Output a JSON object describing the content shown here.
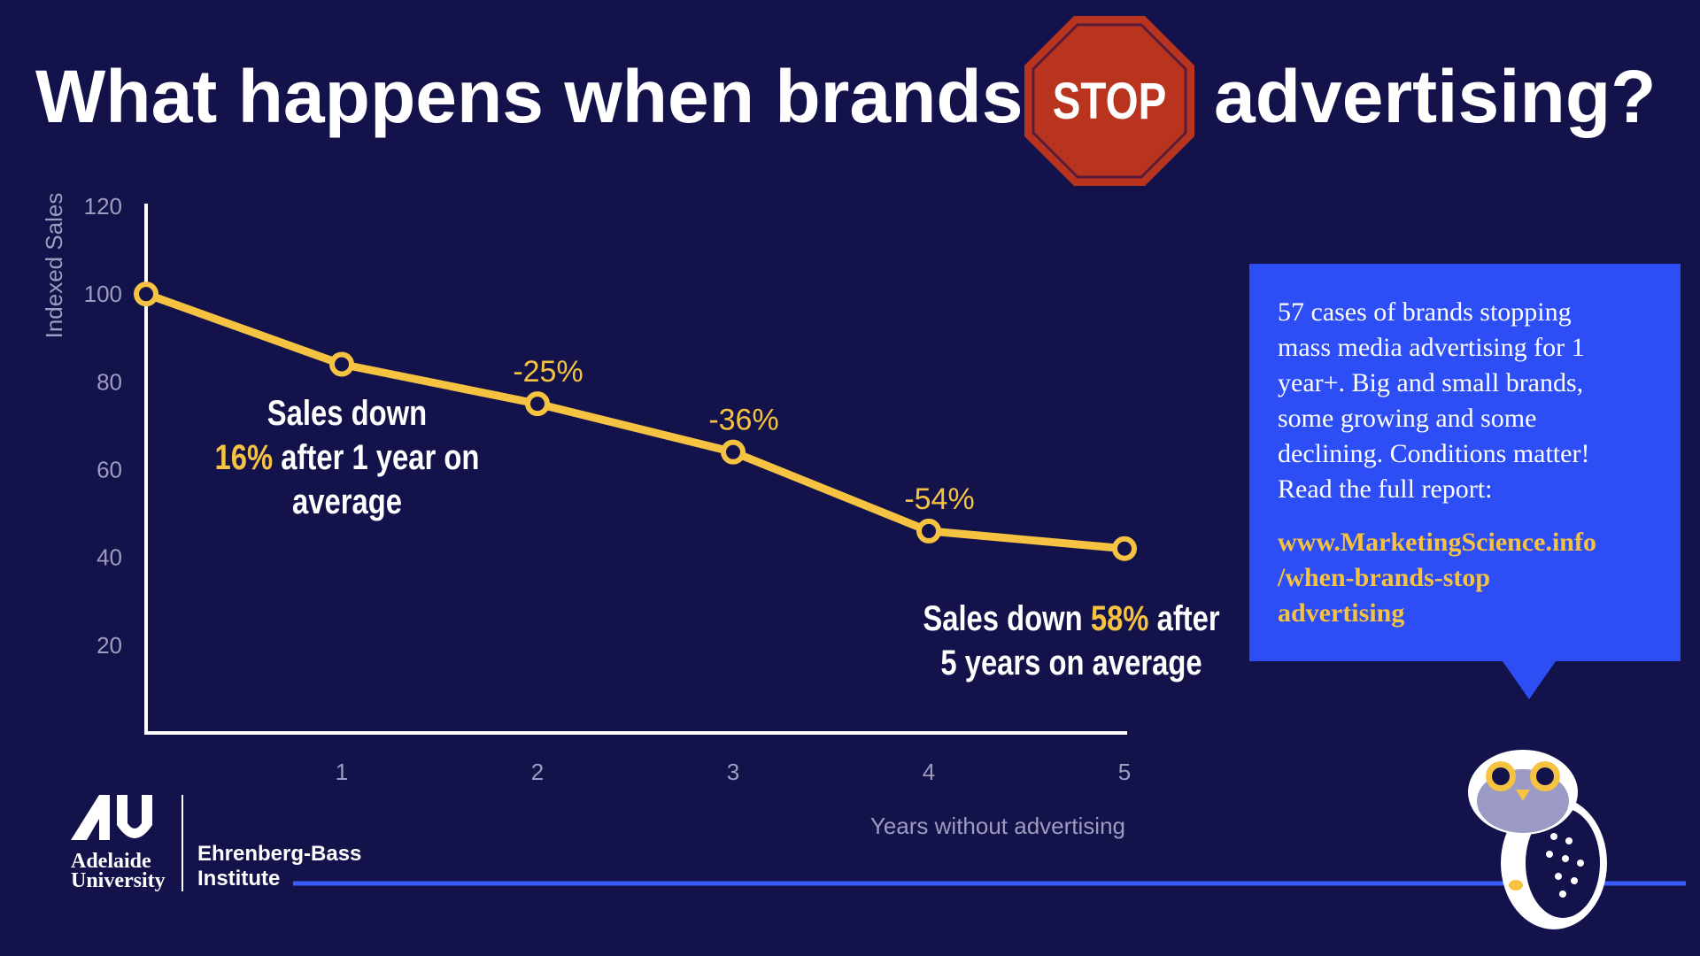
{
  "title": {
    "before": "What happens when brands",
    "sign": "STOP",
    "after": "advertising?"
  },
  "chart_data": {
    "type": "line",
    "x": [
      0,
      1,
      2,
      3,
      4,
      5
    ],
    "values": [
      100,
      84,
      75,
      64,
      46,
      42
    ],
    "color": "#f5c242",
    "xlim": [
      0,
      5
    ],
    "ylim": [
      0,
      120
    ],
    "xticks": [
      1,
      2,
      3,
      4,
      5
    ],
    "yticks": [
      20,
      40,
      60,
      80,
      100,
      120
    ],
    "xlabel": "Years without advertising",
    "ylabel": "Indexed Sales",
    "annotations": [
      {
        "text": "-25%",
        "x": 2
      },
      {
        "text": "-36%",
        "x": 3
      },
      {
        "text": "-54%",
        "x": 4
      }
    ],
    "callouts": [
      {
        "lines": [
          [
            {
              "text": "Sales down"
            }
          ],
          [
            {
              "text": "16%",
              "highlight": true
            },
            {
              "text": "after 1 year on"
            }
          ],
          [
            {
              "text": "average"
            }
          ]
        ]
      },
      {
        "lines": [
          [
            {
              "text": "Sales down"
            },
            {
              "text": "58%",
              "highlight": true
            },
            {
              "text": "after"
            }
          ],
          [
            {
              "text": "5 years on average"
            }
          ]
        ]
      }
    ]
  },
  "info_box": {
    "lines": [
      "57 cases of brands stopping",
      "mass media advertising for 1",
      "year+. Big and small brands,",
      "some growing and some",
      "declining. Conditions matter!",
      "Read the full report:"
    ],
    "link_lines": [
      "www.MarketingScience.info",
      "/when-brands-stop",
      "advertising"
    ]
  },
  "logo": {
    "university": [
      "Adelaide",
      "University"
    ],
    "institute": [
      "Ehrenberg-Bass",
      "Institute"
    ]
  }
}
